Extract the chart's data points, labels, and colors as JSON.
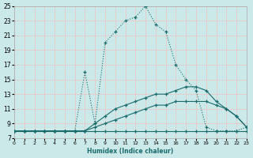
{
  "xlabel": "Humidex (Indice chaleur)",
  "xlim": [
    0,
    23
  ],
  "ylim": [
    7,
    25
  ],
  "yticks": [
    7,
    9,
    11,
    13,
    15,
    17,
    19,
    21,
    23,
    25
  ],
  "xticks": [
    0,
    1,
    2,
    3,
    4,
    5,
    6,
    7,
    8,
    9,
    10,
    11,
    12,
    13,
    14,
    15,
    16,
    17,
    18,
    19,
    20,
    21,
    22,
    23
  ],
  "bg_color": "#cce9e9",
  "grid_color": "#e8c8c8",
  "line_color": "#1a6b6b",
  "lines": [
    {
      "x": [
        0,
        1,
        2,
        3,
        4,
        5,
        6,
        7,
        8,
        9,
        10,
        11,
        12,
        13,
        14,
        15,
        16,
        17,
        18,
        19,
        20,
        21,
        22,
        23
      ],
      "y": [
        8,
        8,
        8,
        8,
        8,
        8,
        8,
        8,
        8,
        8,
        8,
        8,
        8,
        8,
        8,
        8,
        8,
        8,
        8,
        8,
        8,
        8,
        8,
        8
      ],
      "style": "solid"
    },
    {
      "x": [
        0,
        1,
        2,
        3,
        4,
        5,
        6,
        7,
        8,
        9,
        10,
        11,
        12,
        13,
        14,
        15,
        16,
        17,
        18,
        19,
        20,
        21,
        22,
        23
      ],
      "y": [
        8,
        8,
        8,
        8,
        8,
        8,
        8,
        8,
        8.5,
        9,
        9.5,
        10,
        10.5,
        11,
        11.5,
        11.5,
        12,
        12,
        12,
        12,
        11.5,
        11,
        10,
        8.5
      ],
      "style": "solid"
    },
    {
      "x": [
        0,
        1,
        2,
        3,
        4,
        5,
        6,
        7,
        8,
        9,
        10,
        11,
        12,
        13,
        14,
        15,
        16,
        17,
        18,
        19,
        20,
        21,
        22,
        23
      ],
      "y": [
        8,
        8,
        8,
        8,
        8,
        8,
        8,
        8,
        9,
        10,
        11,
        11.5,
        12,
        12.5,
        13,
        13,
        13.5,
        14,
        14,
        13.5,
        12,
        11,
        10,
        8.5
      ],
      "style": "solid"
    },
    {
      "x": [
        0,
        1,
        2,
        3,
        4,
        5,
        6,
        7,
        8,
        9,
        10,
        11,
        12,
        13,
        14,
        15,
        16,
        17,
        18,
        19,
        20,
        21,
        22,
        23
      ],
      "y": [
        8,
        8,
        8,
        8,
        8,
        8,
        8,
        16,
        9,
        20,
        21.5,
        23,
        23.5,
        25,
        22.5,
        21.5,
        17,
        15,
        13.5,
        8.5,
        8,
        8,
        8,
        8.5
      ],
      "style": "dotted"
    }
  ]
}
